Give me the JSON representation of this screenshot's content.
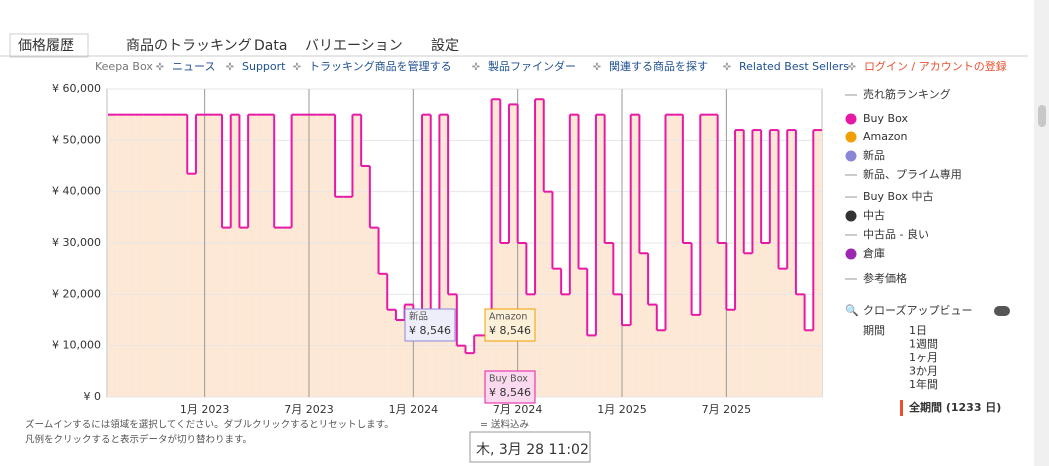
{
  "tabs": [
    "価格履歴",
    "商品のトラッキング",
    "Data",
    "バリエーション",
    "設定"
  ],
  "nav": [
    "Keepa Box",
    "ニュース",
    "Support",
    "トラッキング商品を管理する",
    "製品ファインダー",
    "関連する商品を探す",
    "Related Best Sellers",
    "ログイン / アカウントの登録"
  ],
  "legend_items": [
    {
      "name": "売れ筋ランキング",
      "color": "#999999",
      "style": "line"
    },
    {
      "name": "Amazon",
      "color": "#f0a000",
      "style": "dot"
    },
    {
      "name": "新品",
      "color": "#8a87d6",
      "style": "dot"
    },
    {
      "name": "新品、プライム専用",
      "color": "#999999",
      "style": "line"
    },
    {
      "name": "Buy Box 中古",
      "color": "#999999",
      "style": "line"
    },
    {
      "name": "中古",
      "color": "#333333",
      "style": "dot"
    },
    {
      "name": "中古品 - 良い",
      "color": "#999999",
      "style": "line"
    },
    {
      "name": "倉庫",
      "color": "#9c27b0",
      "style": "dot"
    },
    {
      "name": "参考価格",
      "color": "#999999",
      "style": "line"
    }
  ],
  "closeup": "クローズアップビュー",
  "period": {
    "label": "期間",
    "options": [
      "1日",
      "1週間",
      "1ヶ月",
      "3か月",
      "1年間",
      "全期間 (1233 日)"
    ]
  },
  "notes": [
    "ズームインするには領域を選択してください。ダブルクリックするとリセットします。",
    "= 送料込み",
    "凡例をクリックすると表示データが切り替わります。"
  ],
  "chart_data": {
    "type": "step-area",
    "categories": [
      null,
      null,
      null,
      null,
      null,
      null,
      null,
      null,
      null,
      null,
      null,
      "1月 2023",
      null,
      null,
      null,
      null,
      null,
      null,
      null,
      null,
      null,
      null,
      null,
      "7月 2023",
      null,
      null,
      null,
      null,
      null,
      null,
      null,
      null,
      null,
      null,
      null,
      "1月 2024",
      null,
      null,
      null,
      null,
      null,
      null,
      null,
      null,
      null,
      null,
      null,
      "7月 2024",
      null,
      null,
      null,
      null,
      null,
      null,
      null,
      null,
      null,
      null,
      null,
      "1月 2025",
      null,
      null,
      null,
      null,
      null,
      null,
      null,
      null,
      null,
      null,
      null,
      "7月 2025",
      null,
      null,
      null,
      null,
      null,
      null,
      null,
      null,
      null,
      null
    ],
    "series": [
      {
        "name": "Buy Box",
        "color": "#e619a6",
        "fill": "#fde8d5",
        "values": [
          55000,
          55000,
          55000,
          55000,
          55000,
          55000,
          55000,
          55000,
          55000,
          43500,
          55000,
          55000,
          55000,
          33000,
          55000,
          33000,
          55000,
          55000,
          55000,
          33000,
          33000,
          55000,
          55000,
          55000,
          55000,
          55000,
          39000,
          39000,
          55000,
          45000,
          33000,
          24000,
          17000,
          15000,
          18000,
          14000,
          55000,
          15000,
          55000,
          20000,
          10000,
          8546,
          12000,
          12000,
          58000,
          30000,
          57000,
          30000,
          20000,
          58000,
          40000,
          25000,
          20000,
          55000,
          25000,
          12000,
          55000,
          30000,
          20000,
          14000,
          55000,
          28000,
          18000,
          13000,
          55000,
          55000,
          30000,
          16000,
          55000,
          55000,
          30000,
          17000,
          52000,
          28000,
          52000,
          30000,
          52000,
          25000,
          52000,
          20000,
          13000,
          52000
        ]
      }
    ],
    "ylim": [
      0,
      60000
    ],
    "yticks": [
      {
        "value": 0,
        "label": "¥ 0"
      },
      {
        "value": 10000,
        "label": "¥ 10,000"
      },
      {
        "value": 20000,
        "label": "¥ 20,000"
      },
      {
        "value": 30000,
        "label": "¥ 30,000"
      },
      {
        "value": 40000,
        "label": "¥ 40,000"
      },
      {
        "value": 50000,
        "label": "¥ 50,000"
      },
      {
        "value": 60000,
        "label": "¥ 60,000"
      }
    ],
    "grid": true,
    "annotations": [
      {
        "label": "新品",
        "text": "¥ 8,546",
        "color": "#8a87d6",
        "bg": "#eeeefa"
      },
      {
        "label": "Amazon",
        "text": "¥ 8,546",
        "color": "#f0a000",
        "bg": "#fdf0d8"
      },
      {
        "label": "Buy Box",
        "text": "¥ 8,546",
        "color": "#e619a6",
        "bg": "#fbd9ee"
      }
    ],
    "tooltip": "木, 3月 28 11:02"
  }
}
